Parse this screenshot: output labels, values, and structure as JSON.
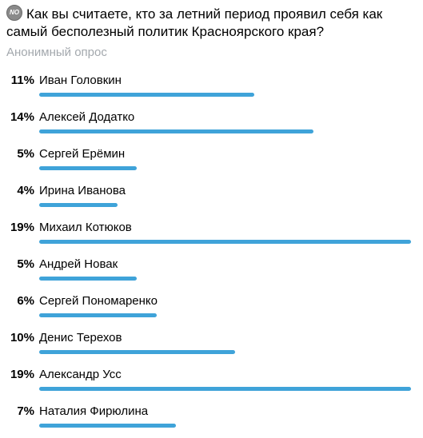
{
  "poll": {
    "badge_text": "NO",
    "question": "Как вы считаете, кто за летний период проявил себя как самый бесполезный политик Красноярского края?",
    "type_label": "Анонимный опрос",
    "bar_color": "#3fa3d9",
    "max_percent": 19,
    "options": [
      {
        "percent_label": "11%",
        "name": "Иван Головкин",
        "value": 11
      },
      {
        "percent_label": "14%",
        "name": "Алексей Додатко",
        "value": 14
      },
      {
        "percent_label": "5%",
        "name": "Сергей Ерёмин",
        "value": 5
      },
      {
        "percent_label": "4%",
        "name": "Ирина Иванова",
        "value": 4
      },
      {
        "percent_label": "19%",
        "name": "Михаил Котюков",
        "value": 19
      },
      {
        "percent_label": "5%",
        "name": "Андрей Новак",
        "value": 5
      },
      {
        "percent_label": "6%",
        "name": "Сергей Пономаренко",
        "value": 6
      },
      {
        "percent_label": "10%",
        "name": "Денис Терехов",
        "value": 10
      },
      {
        "percent_label": "19%",
        "name": "Александр Усс",
        "value": 19
      },
      {
        "percent_label": "7%",
        "name": "Наталия Фирюлина",
        "value": 7
      }
    ]
  }
}
